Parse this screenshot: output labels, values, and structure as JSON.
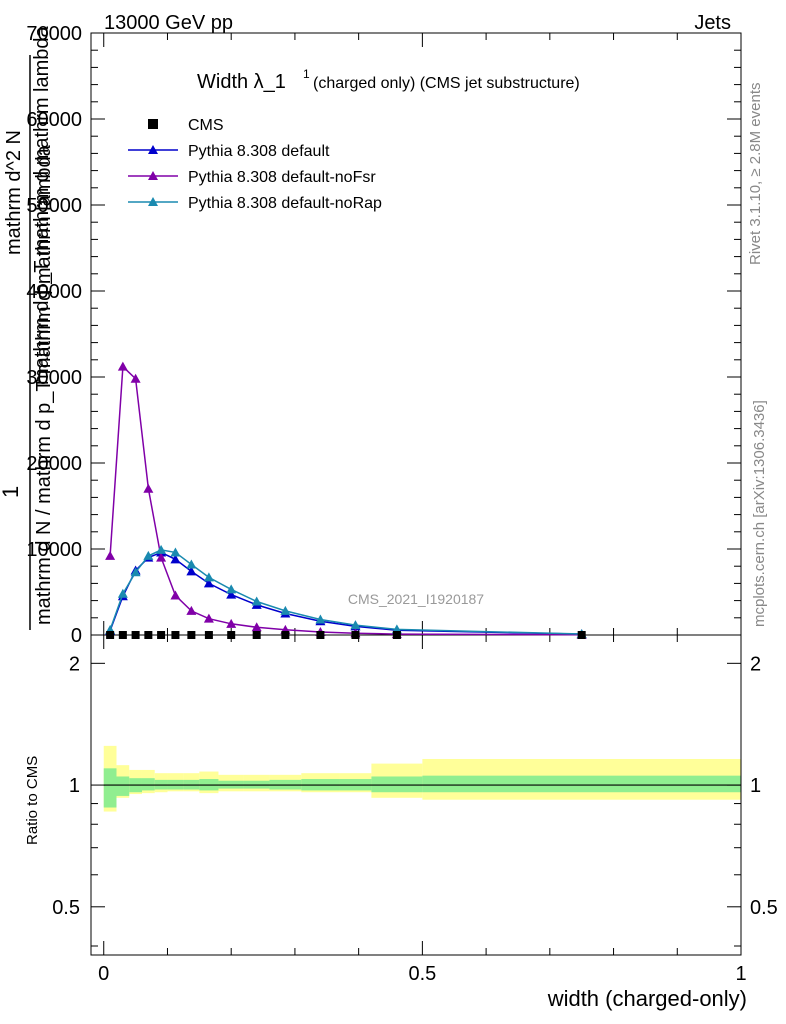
{
  "header": {
    "left": "13000 GeV pp",
    "right": "Jets"
  },
  "side_labels": {
    "rivet": "Rivet 3.1.10, ≥ 2.8M events",
    "mcplots": "mcplots.cern.ch [arXiv:1306.3436]"
  },
  "watermark": "CMS_2021_I1920187",
  "chart_data": {
    "type": "line",
    "title": "Width λ_1",
    "title_superscript": "1",
    "subtitle": "(charged only) (CMS jet substructure)",
    "xlabel": "width (charged-only)",
    "ylabel_parts": [
      "1",
      "mathrm d N / mathrm d p_T mathrm d mathrm lambda",
      "mathrm d^2 N",
      "mathrm d p_T mathrm d mathrm lambda"
    ],
    "ratio_ylabel": "Ratio to CMS",
    "xlim": [
      -0.02,
      1.0
    ],
    "ylim": [
      0,
      70000
    ],
    "ratio_ylim": [
      0.38,
      2.35
    ],
    "log_ratio": true,
    "grid": false,
    "legend_position": "top-left",
    "x_ticks": [
      0,
      0.5,
      1
    ],
    "x_tick_labels": [
      "0",
      "0.5",
      "1"
    ],
    "y_ticks": [
      0,
      10000,
      20000,
      30000,
      40000,
      50000,
      60000,
      70000
    ],
    "y_tick_labels": [
      "0",
      "10000",
      "20000",
      "30000",
      "40000",
      "50000",
      "60000",
      "70000"
    ],
    "ratio_ticks": [
      0.5,
      1,
      2
    ],
    "ratio_tick_labels": [
      "0.5",
      "1",
      "2"
    ],
    "bin_edges": [
      0,
      0.02,
      0.04,
      0.06,
      0.08,
      0.1,
      0.125,
      0.15,
      0.18,
      0.22,
      0.26,
      0.31,
      0.37,
      0.42,
      0.5,
      1.0
    ],
    "cms": {
      "name": "CMS",
      "x": [
        0.01,
        0.03,
        0.05,
        0.07,
        0.09,
        0.1125,
        0.1375,
        0.165,
        0.2,
        0.24,
        0.285,
        0.34,
        0.395,
        0.46,
        0.75
      ],
      "y": [
        0,
        0,
        0,
        0,
        0,
        0,
        0,
        0,
        0,
        0,
        0,
        0,
        0,
        0,
        0
      ]
    },
    "series": [
      {
        "name": "Pythia 8.308 default",
        "color": "#0000cc",
        "x": [
          0.01,
          0.03,
          0.05,
          0.07,
          0.09,
          0.1125,
          0.1375,
          0.165,
          0.2,
          0.24,
          0.285,
          0.34,
          0.395,
          0.46,
          0.75
        ],
        "y": [
          500,
          4500,
          7500,
          9000,
          9600,
          8800,
          7400,
          6000,
          4700,
          3500,
          2500,
          1600,
          1000,
          550,
          100
        ]
      },
      {
        "name": "Pythia 8.308 default-noFsr",
        "color": "#8000a8",
        "x": [
          0.01,
          0.03,
          0.05,
          0.07,
          0.09,
          0.1125,
          0.1375,
          0.165,
          0.2,
          0.24,
          0.285,
          0.34,
          0.395,
          0.46,
          0.75
        ],
        "y": [
          9200,
          31200,
          29800,
          17000,
          9000,
          4600,
          2800,
          1900,
          1300,
          900,
          600,
          350,
          200,
          100,
          30
        ]
      },
      {
        "name": "Pythia 8.308 default-noRap",
        "color": "#1a8ab0",
        "x": [
          0.01,
          0.03,
          0.05,
          0.07,
          0.09,
          0.1125,
          0.1375,
          0.165,
          0.2,
          0.24,
          0.285,
          0.34,
          0.395,
          0.46,
          0.75
        ],
        "y": [
          600,
          4800,
          7300,
          9200,
          9900,
          9600,
          8200,
          6700,
          5300,
          3900,
          2800,
          1800,
          1150,
          650,
          120
        ]
      }
    ],
    "ratio_band_inner": [
      [
        0.88,
        1.1
      ],
      [
        0.94,
        1.05
      ],
      [
        0.96,
        1.04
      ],
      [
        0.97,
        1.04
      ],
      [
        0.975,
        1.03
      ],
      [
        0.975,
        1.03
      ],
      [
        0.975,
        1.03
      ],
      [
        0.97,
        1.035
      ],
      [
        0.98,
        1.025
      ],
      [
        0.98,
        1.025
      ],
      [
        0.975,
        1.03
      ],
      [
        0.97,
        1.035
      ],
      [
        0.97,
        1.035
      ],
      [
        0.96,
        1.05
      ],
      [
        0.96,
        1.055
      ]
    ],
    "ratio_band_outer": [
      [
        0.86,
        1.25
      ],
      [
        0.93,
        1.12
      ],
      [
        0.95,
        1.09
      ],
      [
        0.955,
        1.09
      ],
      [
        0.96,
        1.07
      ],
      [
        0.965,
        1.07
      ],
      [
        0.965,
        1.07
      ],
      [
        0.955,
        1.08
      ],
      [
        0.965,
        1.06
      ],
      [
        0.965,
        1.06
      ],
      [
        0.965,
        1.06
      ],
      [
        0.96,
        1.07
      ],
      [
        0.96,
        1.07
      ],
      [
        0.93,
        1.13
      ],
      [
        0.92,
        1.16
      ]
    ]
  }
}
